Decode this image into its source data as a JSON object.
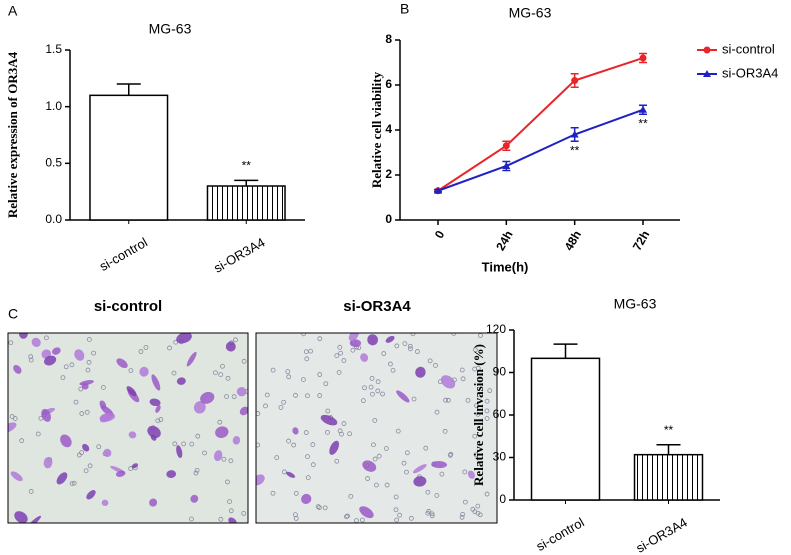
{
  "chart_data": [
    {
      "type": "bar",
      "panel_label": "A",
      "title": "MG-63",
      "ylabel": "Relative expression of OR3A4",
      "categories": [
        "si-control",
        "si-OR3A4"
      ],
      "values": [
        1.1,
        0.3
      ],
      "errors": [
        0.1,
        0.05
      ],
      "fills": [
        "solid",
        "hatch"
      ],
      "color": "#000000",
      "ylim": [
        0,
        1.5
      ],
      "yticks": [
        {
          "value": 0,
          "label": "0.0"
        },
        0.5,
        {
          "value": 1,
          "label": "1.0"
        },
        1.5
      ],
      "annotations": [
        {
          "x": "si-OR3A4",
          "text": "**"
        }
      ]
    },
    {
      "type": "line",
      "panel_label": "B",
      "title": "MG-63",
      "ylabel": "Relative cell viability",
      "xlabel": "Time(h)",
      "categories": [
        "0",
        "24h",
        "48h",
        "72h"
      ],
      "series": [
        {
          "name": "si-control",
          "color": "#e8262a",
          "marker": "circle",
          "values": [
            1.3,
            3.3,
            6.2,
            7.2
          ],
          "errors": [
            0.05,
            0.2,
            0.3,
            0.2
          ]
        },
        {
          "name": "si-OR3A4",
          "color": "#1f22c0",
          "marker": "triangle",
          "values": [
            1.3,
            2.4,
            3.8,
            4.9
          ],
          "errors": [
            0.05,
            0.2,
            0.3,
            0.2
          ]
        }
      ],
      "ylim": [
        0,
        8
      ],
      "yticks": [
        0,
        2,
        4,
        6,
        8
      ],
      "legend": "outside-right",
      "annotations": [
        {
          "x": "48h",
          "series": "si-OR3A4",
          "text": "**"
        },
        {
          "x": "72h",
          "series": "si-OR3A4",
          "text": "**"
        }
      ]
    },
    {
      "type": "bar",
      "panel_label": "C",
      "title": "MG-63",
      "ylabel": "Relative cell invasion (%)",
      "categories": [
        "si-control",
        "si-OR3A4"
      ],
      "values": [
        100,
        32
      ],
      "errors": [
        10,
        7
      ],
      "fills": [
        "solid",
        "hatch"
      ],
      "color": "#000000",
      "ylim": [
        0,
        120
      ],
      "yticks": [
        0,
        30,
        60,
        90,
        120
      ],
      "annotations": [
        {
          "x": "si-OR3A4",
          "text": "**"
        }
      ]
    }
  ],
  "images": [
    {
      "label": "si-control"
    },
    {
      "label": "si-OR3A4"
    }
  ]
}
